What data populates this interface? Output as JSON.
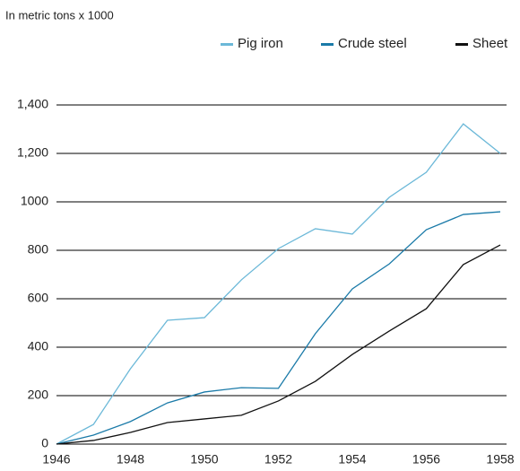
{
  "chart_data": {
    "type": "line",
    "subtitle": "In metric tons x 1000",
    "x": [
      1946,
      1947,
      1948,
      1949,
      1950,
      1951,
      1952,
      1953,
      1954,
      1955,
      1956,
      1957,
      1958
    ],
    "series": [
      {
        "name": "Pig iron",
        "color": "#6bb8d8",
        "values": [
          0,
          81,
          311,
          511,
          522,
          678,
          807,
          889,
          867,
          1019,
          1122,
          1322,
          1200
        ]
      },
      {
        "name": "Crude steel",
        "color": "#1a7aa8",
        "values": [
          0,
          37,
          93,
          170,
          215,
          233,
          230,
          456,
          641,
          744,
          885,
          948,
          959
        ]
      },
      {
        "name": "Sheet",
        "color": "#111111",
        "values": [
          0,
          15,
          48,
          89,
          104,
          119,
          178,
          259,
          370,
          467,
          559,
          741,
          822
        ]
      }
    ],
    "xlim": [
      1946,
      1958
    ],
    "xticks": [
      1946,
      1948,
      1950,
      1952,
      1954,
      1956,
      1958
    ],
    "ylim": [
      0,
      1400
    ],
    "yticks": [
      0,
      200,
      400,
      600,
      800,
      1000,
      {
        "value": 1200,
        "label": "1,200"
      },
      {
        "value": 1400,
        "label": "1,400"
      }
    ],
    "grid": true,
    "legend": "top-right"
  }
}
